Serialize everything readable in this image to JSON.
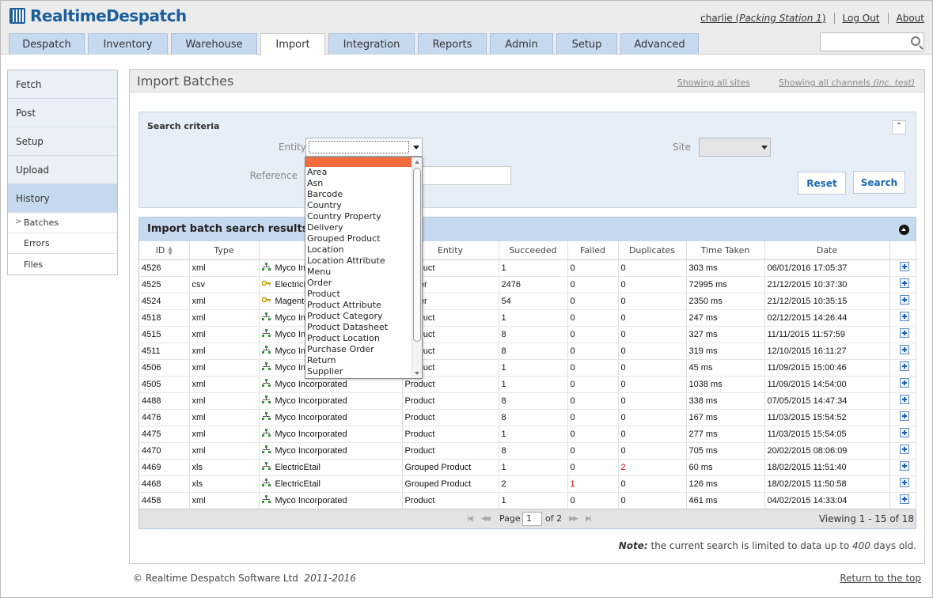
{
  "app": {
    "name": "RealtimeDespatch"
  },
  "user": {
    "name": "charlie",
    "open_paren": "(",
    "station": "Packing Station 1",
    "close_paren": ")",
    "logout": "Log Out",
    "about": "About"
  },
  "tabs": [
    {
      "label": "Despatch"
    },
    {
      "label": "Inventory"
    },
    {
      "label": "Warehouse"
    },
    {
      "label": "Import"
    },
    {
      "label": "Integration"
    },
    {
      "label": "Reports"
    },
    {
      "label": "Admin"
    },
    {
      "label": "Setup"
    },
    {
      "label": "Advanced"
    }
  ],
  "search": {
    "placeholder": ""
  },
  "sidebar": {
    "items": [
      {
        "label": "Fetch"
      },
      {
        "label": "Post"
      },
      {
        "label": "Setup"
      },
      {
        "label": "Upload"
      },
      {
        "label": "History"
      }
    ],
    "subitems": [
      {
        "label": "Batches"
      },
      {
        "label": "Errors"
      },
      {
        "label": "Files"
      }
    ]
  },
  "page": {
    "title": "Import Batches",
    "sites_link": "Showing all sites",
    "channels_link": "Showing all channels",
    "channels_suffix": "(inc. test)"
  },
  "criteria": {
    "title": "Search criteria",
    "collapse": "⌃",
    "entity_label": "Entity",
    "reference_label": "Reference",
    "site_label": "Site",
    "reset": "Reset",
    "search": "Search"
  },
  "entity_options": [
    "",
    "Area",
    "Asn",
    "Barcode",
    "Country",
    "Country Property",
    "Delivery",
    "Grouped Product",
    "Location",
    "Location Attribute",
    "Menu",
    "Order",
    "Product",
    "Product Attribute",
    "Product Category",
    "Product Datasheet",
    "Product Location",
    "Purchase Order",
    "Return",
    "Supplier"
  ],
  "results": {
    "title": "Import batch search results",
    "columns": [
      "ID",
      "Type",
      "",
      "Entity",
      "Succeeded",
      "Failed",
      "Duplicates",
      "Time Taken",
      "Date",
      ""
    ],
    "rows": [
      {
        "id": "4526",
        "type": "xml",
        "icon": "org-tree-icon",
        "source": "Myco Incorporated",
        "entity": "Product",
        "succeeded": "1",
        "failed": "0",
        "duplicates": "0",
        "time": "303 ms",
        "date": "06/01/2016 17:05:37"
      },
      {
        "id": "4525",
        "type": "csv",
        "icon": "key-icon",
        "source": "ElectricEtail",
        "entity": "Order",
        "succeeded": "2476",
        "failed": "0",
        "duplicates": "0",
        "time": "72995 ms",
        "date": "21/12/2015 10:37:30"
      },
      {
        "id": "4524",
        "type": "xml",
        "icon": "key-icon",
        "source": "Magento",
        "entity": "Order",
        "succeeded": "54",
        "failed": "0",
        "duplicates": "0",
        "time": "2350 ms",
        "date": "21/12/2015 10:35:15"
      },
      {
        "id": "4518",
        "type": "xml",
        "icon": "org-tree-icon",
        "source": "Myco Incorporated",
        "entity": "Product",
        "succeeded": "1",
        "failed": "0",
        "duplicates": "0",
        "time": "247 ms",
        "date": "02/12/2015 14:26:44"
      },
      {
        "id": "4515",
        "type": "xml",
        "icon": "org-tree-icon",
        "source": "Myco Incorporated",
        "entity": "Product",
        "succeeded": "8",
        "failed": "0",
        "duplicates": "0",
        "time": "327 ms",
        "date": "11/11/2015 11:57:59"
      },
      {
        "id": "4511",
        "type": "xml",
        "icon": "org-tree-icon",
        "source": "Myco Incorporated",
        "entity": "Product",
        "succeeded": "8",
        "failed": "0",
        "duplicates": "0",
        "time": "319 ms",
        "date": "12/10/2015 16:11:27"
      },
      {
        "id": "4506",
        "type": "xml",
        "icon": "org-tree-icon",
        "source": "Myco Incorporated",
        "entity": "Product",
        "succeeded": "1",
        "failed": "0",
        "duplicates": "0",
        "time": "45 ms",
        "date": "11/09/2015 15:00:46"
      },
      {
        "id": "4505",
        "type": "xml",
        "icon": "org-tree-icon",
        "source": "Myco Incorporated",
        "entity": "Product",
        "succeeded": "1",
        "failed": "0",
        "duplicates": "0",
        "time": "1038 ms",
        "date": "11/09/2015 14:54:00"
      },
      {
        "id": "4488",
        "type": "xml",
        "icon": "org-tree-icon",
        "source": "Myco Incorporated",
        "entity": "Product",
        "succeeded": "8",
        "failed": "0",
        "duplicates": "0",
        "time": "338 ms",
        "date": "07/05/2015 14:47:34"
      },
      {
        "id": "4476",
        "type": "xml",
        "icon": "org-tree-icon",
        "source": "Myco Incorporated",
        "entity": "Product",
        "succeeded": "8",
        "failed": "0",
        "duplicates": "0",
        "time": "167 ms",
        "date": "11/03/2015 15:54:52"
      },
      {
        "id": "4475",
        "type": "xml",
        "icon": "org-tree-icon",
        "source": "Myco Incorporated",
        "entity": "Product",
        "succeeded": "1",
        "failed": "0",
        "duplicates": "0",
        "time": "277 ms",
        "date": "11/03/2015 15:54:05"
      },
      {
        "id": "4470",
        "type": "xml",
        "icon": "org-tree-icon",
        "source": "Myco Incorporated",
        "entity": "Product",
        "succeeded": "8",
        "failed": "0",
        "duplicates": "0",
        "time": "705 ms",
        "date": "20/02/2015 08:06:09"
      },
      {
        "id": "4469",
        "type": "xls",
        "icon": "org-tree-icon",
        "source": "ElectricEtail",
        "entity": "Grouped Product",
        "succeeded": "1",
        "failed": "0",
        "duplicates": "2",
        "time": "60 ms",
        "date": "18/02/2015 11:51:40"
      },
      {
        "id": "4468",
        "type": "xls",
        "icon": "org-tree-icon",
        "source": "ElectricEtail",
        "entity": "Grouped Product",
        "succeeded": "2",
        "failed": "1",
        "duplicates": "0",
        "time": "126 ms",
        "date": "18/02/2015 11:50:58"
      },
      {
        "id": "4458",
        "type": "xml",
        "icon": "org-tree-icon",
        "source": "Myco Incorporated",
        "entity": "Product",
        "succeeded": "1",
        "failed": "0",
        "duplicates": "0",
        "time": "461 ms",
        "date": "04/02/2015 14:33:04"
      }
    ]
  },
  "pager": {
    "first": "|◀",
    "prev": "◀◀",
    "next": "▶▶",
    "last": "▶|",
    "page_label": "Page",
    "page_value": "1",
    "of_label": "of 2",
    "viewing": "Viewing 1 - 15 of 18"
  },
  "note": {
    "label": "Note:",
    "text_before": "the current search is limited to data up to",
    "days": "400",
    "text_after": "days old."
  },
  "footer": {
    "copyright": "© Realtime Despatch Software Ltd",
    "years": "2011-2016",
    "top_link": "Return to the top"
  },
  "colors": {
    "accent": "#1b5e9e",
    "tab_bg": "#c7d9ee",
    "selected_option": "#f36c3d",
    "error": "#dd0000"
  }
}
